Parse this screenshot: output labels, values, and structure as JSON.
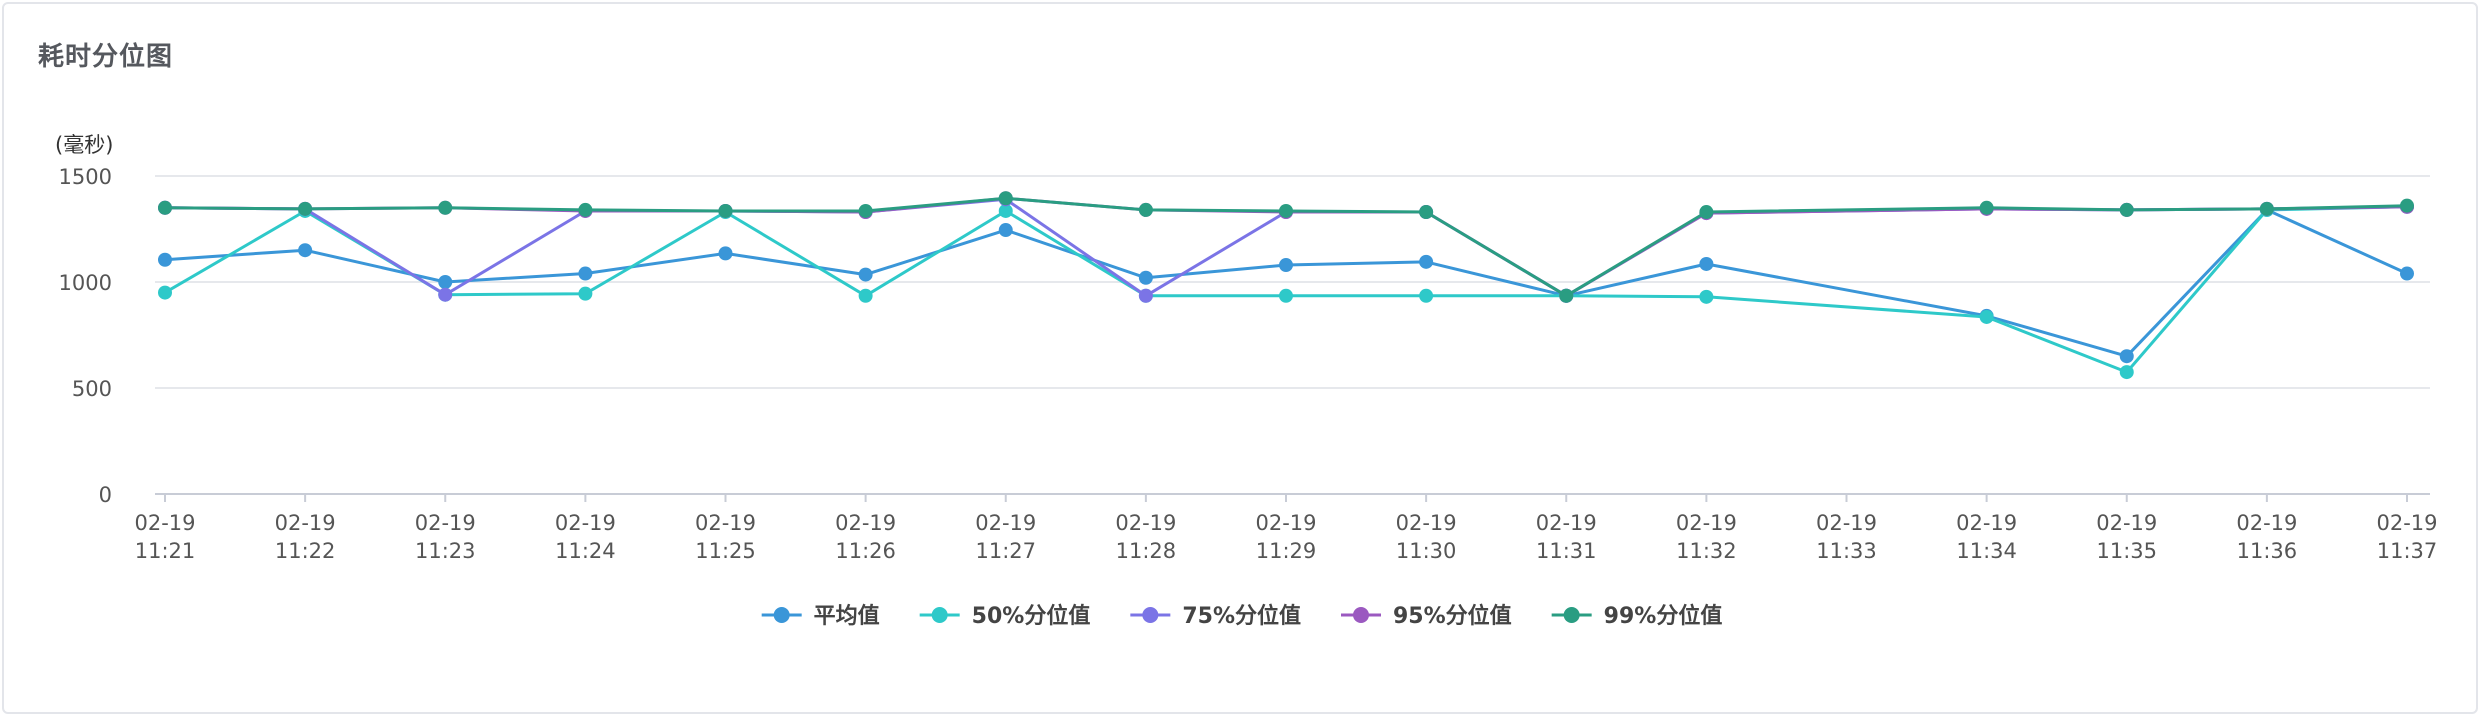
{
  "panel": {
    "title": "耗时分位图"
  },
  "chart_data": {
    "type": "line",
    "ylabel": "(毫秒)",
    "ylim": [
      0,
      1500
    ],
    "yticks": [
      0,
      500,
      1000,
      1500
    ],
    "grid": true,
    "legend_position": "bottom-center",
    "categories": [
      [
        "02-19",
        "11:21"
      ],
      [
        "02-19",
        "11:22"
      ],
      [
        "02-19",
        "11:23"
      ],
      [
        "02-19",
        "11:24"
      ],
      [
        "02-19",
        "11:25"
      ],
      [
        "02-19",
        "11:26"
      ],
      [
        "02-19",
        "11:27"
      ],
      [
        "02-19",
        "11:28"
      ],
      [
        "02-19",
        "11:29"
      ],
      [
        "02-19",
        "11:30"
      ],
      [
        "02-19",
        "11:31"
      ],
      [
        "02-19",
        "11:32"
      ],
      [
        "02-19",
        "11:33"
      ],
      [
        "02-19",
        "11:34"
      ],
      [
        "02-19",
        "11:35"
      ],
      [
        "02-19",
        "11:36"
      ],
      [
        "02-19",
        "11:37"
      ]
    ],
    "series": [
      {
        "name": "平均值",
        "color": "#3a96d8",
        "values": [
          1105,
          1150,
          1000,
          1040,
          1135,
          1035,
          1245,
          1020,
          1080,
          1095,
          935,
          1085,
          null,
          840,
          650,
          1340,
          1040
        ]
      },
      {
        "name": "50%分位值",
        "color": "#2ec9c9",
        "values": [
          950,
          1335,
          940,
          945,
          1330,
          935,
          1335,
          935,
          935,
          935,
          935,
          930,
          null,
          835,
          575,
          1340,
          1355
        ]
      },
      {
        "name": "75%分位值",
        "color": "#7b74e6",
        "values": [
          1350,
          1345,
          940,
          1335,
          1335,
          1330,
          1390,
          935,
          1330,
          1330,
          935,
          1325,
          null,
          1345,
          1340,
          1345,
          1355
        ]
      },
      {
        "name": "95%分位值",
        "color": "#9b59c0",
        "values": [
          1350,
          1345,
          1350,
          1335,
          1335,
          1330,
          1395,
          1340,
          1330,
          1330,
          935,
          1325,
          null,
          1345,
          1340,
          1345,
          1355
        ]
      },
      {
        "name": "99%分位值",
        "color": "#2a9d82",
        "values": [
          1350,
          1345,
          1350,
          1340,
          1335,
          1335,
          1395,
          1340,
          1335,
          1330,
          935,
          1330,
          null,
          1350,
          1340,
          1345,
          1360
        ]
      }
    ]
  }
}
